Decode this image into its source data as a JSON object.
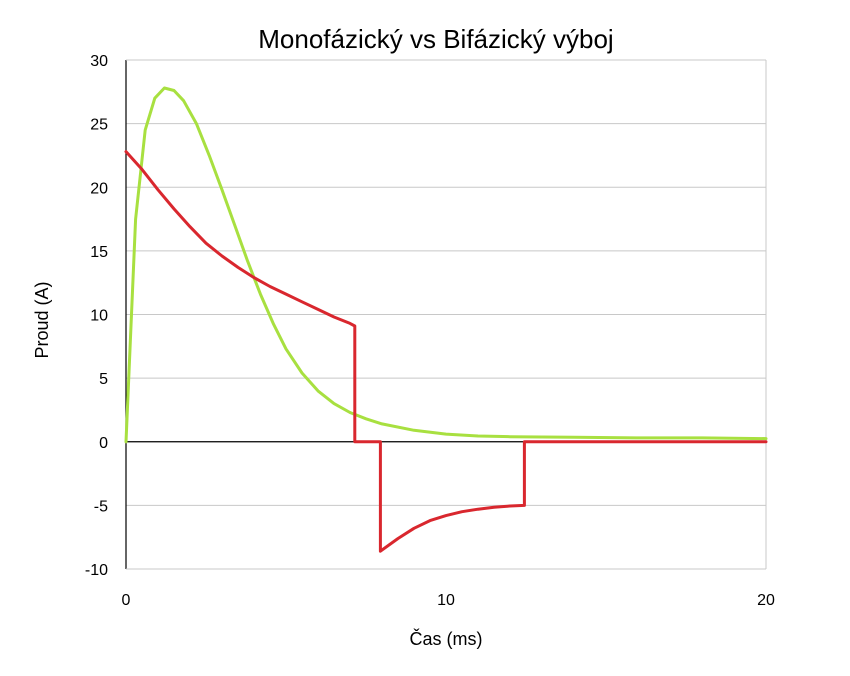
{
  "chart_data": {
    "type": "line",
    "title": "Monofázický  vs  Bifázický výboj",
    "xlabel": "Čas (ms)",
    "ylabel": "Proud (A)",
    "xlim": [
      0,
      20
    ],
    "ylim": [
      -10,
      30
    ],
    "x_ticks": [
      0,
      10,
      20
    ],
    "y_ticks": [
      30,
      25,
      20,
      15,
      10,
      5,
      0,
      -5,
      -10
    ],
    "grid": "horizontal",
    "legend": "none",
    "series": [
      {
        "color": "#a8e040",
        "x": [
          0,
          0.3,
          0.6,
          0.9,
          1.2,
          1.5,
          1.8,
          2.2,
          2.6,
          3.0,
          3.4,
          3.8,
          4.2,
          4.6,
          5.0,
          5.5,
          6.0,
          6.5,
          7.0,
          7.5,
          8.0,
          9.0,
          10.0,
          11.0,
          12.0,
          14.0,
          16.0,
          18.0,
          20.0
        ],
        "y": [
          0,
          17.5,
          24.5,
          27,
          27.8,
          27.6,
          26.8,
          25,
          22.5,
          19.8,
          17,
          14.2,
          11.6,
          9.3,
          7.3,
          5.4,
          4.0,
          3.0,
          2.3,
          1.8,
          1.4,
          0.9,
          0.6,
          0.45,
          0.4,
          0.35,
          0.3,
          0.3,
          0.25
        ]
      },
      {
        "color": "#d9272e",
        "x": [
          0,
          0.5,
          1.0,
          1.5,
          2.0,
          2.5,
          3.0,
          3.5,
          4.0,
          4.5,
          5.0,
          5.5,
          6.0,
          6.5,
          7.0,
          7.15,
          7.15,
          7.95,
          7.95,
          8.5,
          9.0,
          9.5,
          10.0,
          10.5,
          11.0,
          11.5,
          12.0,
          12.45,
          12.45,
          16.0,
          20.0
        ],
        "y": [
          22.8,
          21.4,
          19.8,
          18.3,
          16.9,
          15.6,
          14.6,
          13.7,
          12.9,
          12.2,
          11.6,
          11.0,
          10.4,
          9.8,
          9.3,
          9.1,
          0,
          0,
          -8.6,
          -7.6,
          -6.8,
          -6.2,
          -5.8,
          -5.5,
          -5.3,
          -5.15,
          -5.05,
          -5.0,
          0,
          0,
          0
        ]
      }
    ]
  }
}
